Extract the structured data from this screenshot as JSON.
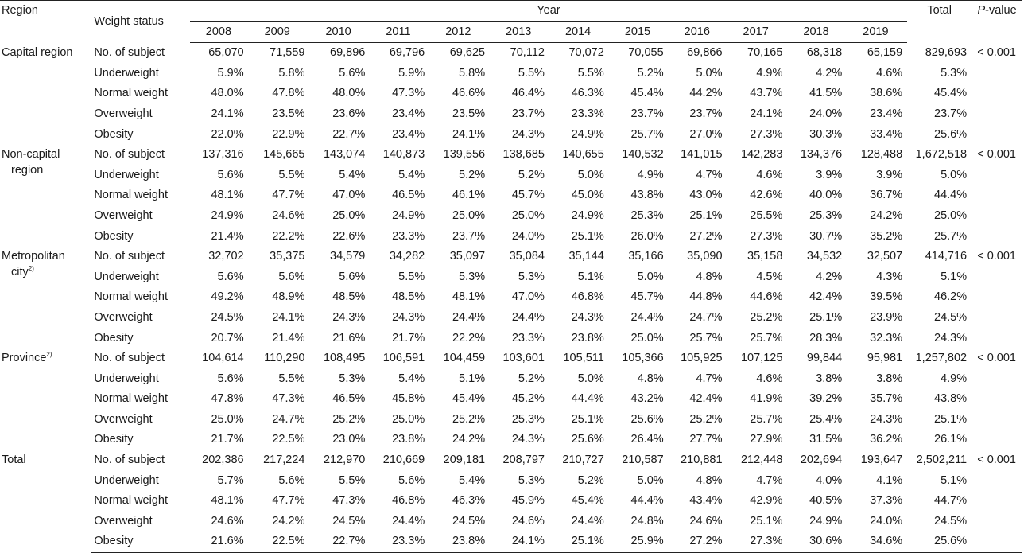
{
  "header": {
    "region": "Region",
    "weight_status": "Weight status",
    "year_group": "Year",
    "years": [
      "2008",
      "2009",
      "2010",
      "2011",
      "2012",
      "2013",
      "2014",
      "2015",
      "2016",
      "2017",
      "2018",
      "2019"
    ],
    "total": "Total",
    "pvalue_italic": "P",
    "pvalue_rest": "-value"
  },
  "regions": [
    {
      "name_line1": "Capital region",
      "name_line2": "",
      "superscript": "",
      "pvalue": "< 0.001",
      "rows": [
        {
          "status": "No. of subject",
          "values": [
            "65,070",
            "71,559",
            "69,896",
            "69,796",
            "69,625",
            "70,112",
            "70,072",
            "70,055",
            "69,866",
            "70,165",
            "68,318",
            "65,159"
          ],
          "total": "829,693"
        },
        {
          "status": "Underweight",
          "values": [
            "5.9%",
            "5.8%",
            "5.6%",
            "5.9%",
            "5.8%",
            "5.5%",
            "5.5%",
            "5.2%",
            "5.0%",
            "4.9%",
            "4.2%",
            "4.6%"
          ],
          "total": "5.3%"
        },
        {
          "status": "Normal weight",
          "values": [
            "48.0%",
            "47.8%",
            "48.0%",
            "47.3%",
            "46.6%",
            "46.4%",
            "46.3%",
            "45.4%",
            "44.2%",
            "43.7%",
            "41.5%",
            "38.6%"
          ],
          "total": "45.4%"
        },
        {
          "status": "Overweight",
          "values": [
            "24.1%",
            "23.5%",
            "23.6%",
            "23.4%",
            "23.5%",
            "23.7%",
            "23.3%",
            "23.7%",
            "23.7%",
            "24.1%",
            "24.0%",
            "23.4%"
          ],
          "total": "23.7%"
        },
        {
          "status": "Obesity",
          "values": [
            "22.0%",
            "22.9%",
            "22.7%",
            "23.4%",
            "24.1%",
            "24.3%",
            "24.9%",
            "25.7%",
            "27.0%",
            "27.3%",
            "30.3%",
            "33.4%"
          ],
          "total": "25.6%"
        }
      ]
    },
    {
      "name_line1": "Non-capital",
      "name_line2": "region",
      "superscript": "",
      "pvalue": "< 0.001",
      "rows": [
        {
          "status": "No. of subject",
          "values": [
            "137,316",
            "145,665",
            "143,074",
            "140,873",
            "139,556",
            "138,685",
            "140,655",
            "140,532",
            "141,015",
            "142,283",
            "134,376",
            "128,488"
          ],
          "total": "1,672,518"
        },
        {
          "status": "Underweight",
          "values": [
            "5.6%",
            "5.5%",
            "5.4%",
            "5.4%",
            "5.2%",
            "5.2%",
            "5.0%",
            "4.9%",
            "4.7%",
            "4.6%",
            "3.9%",
            "3.9%"
          ],
          "total": "5.0%"
        },
        {
          "status": "Normal weight",
          "values": [
            "48.1%",
            "47.7%",
            "47.0%",
            "46.5%",
            "46.1%",
            "45.7%",
            "45.0%",
            "43.8%",
            "43.0%",
            "42.6%",
            "40.0%",
            "36.7%"
          ],
          "total": "44.4%"
        },
        {
          "status": "Overweight",
          "values": [
            "24.9%",
            "24.6%",
            "25.0%",
            "24.9%",
            "25.0%",
            "25.0%",
            "24.9%",
            "25.3%",
            "25.1%",
            "25.5%",
            "25.3%",
            "24.2%"
          ],
          "total": "25.0%"
        },
        {
          "status": "Obesity",
          "values": [
            "21.4%",
            "22.2%",
            "22.6%",
            "23.3%",
            "23.7%",
            "24.0%",
            "25.1%",
            "26.0%",
            "27.2%",
            "27.3%",
            "30.7%",
            "35.2%"
          ],
          "total": "25.7%"
        }
      ]
    },
    {
      "name_line1": "Metropolitan",
      "name_line2": "city",
      "superscript": "2)",
      "pvalue": "< 0.001",
      "rows": [
        {
          "status": "No. of subject",
          "values": [
            "32,702",
            "35,375",
            "34,579",
            "34,282",
            "35,097",
            "35,084",
            "35,144",
            "35,166",
            "35,090",
            "35,158",
            "34,532",
            "32,507"
          ],
          "total": "414,716"
        },
        {
          "status": "Underweight",
          "values": [
            "5.6%",
            "5.6%",
            "5.6%",
            "5.5%",
            "5.3%",
            "5.3%",
            "5.1%",
            "5.0%",
            "4.8%",
            "4.5%",
            "4.2%",
            "4.3%"
          ],
          "total": "5.1%"
        },
        {
          "status": "Normal weight",
          "values": [
            "49.2%",
            "48.9%",
            "48.5%",
            "48.5%",
            "48.1%",
            "47.0%",
            "46.8%",
            "45.7%",
            "44.8%",
            "44.6%",
            "42.4%",
            "39.5%"
          ],
          "total": "46.2%"
        },
        {
          "status": "Overweight",
          "values": [
            "24.5%",
            "24.1%",
            "24.3%",
            "24.3%",
            "24.4%",
            "24.4%",
            "24.3%",
            "24.4%",
            "24.7%",
            "25.2%",
            "25.1%",
            "23.9%"
          ],
          "total": "24.5%"
        },
        {
          "status": "Obesity",
          "values": [
            "20.7%",
            "21.4%",
            "21.6%",
            "21.7%",
            "22.2%",
            "23.3%",
            "23.8%",
            "25.0%",
            "25.7%",
            "25.7%",
            "28.3%",
            "32.3%"
          ],
          "total": "24.3%"
        }
      ]
    },
    {
      "name_line1": "Province",
      "name_line2": "",
      "superscript": "2)",
      "pvalue": "< 0.001",
      "rows": [
        {
          "status": "No. of subject",
          "values": [
            "104,614",
            "110,290",
            "108,495",
            "106,591",
            "104,459",
            "103,601",
            "105,511",
            "105,366",
            "105,925",
            "107,125",
            "99,844",
            "95,981"
          ],
          "total": "1,257,802"
        },
        {
          "status": "Underweight",
          "values": [
            "5.6%",
            "5.5%",
            "5.3%",
            "5.4%",
            "5.1%",
            "5.2%",
            "5.0%",
            "4.8%",
            "4.7%",
            "4.6%",
            "3.8%",
            "3.8%"
          ],
          "total": "4.9%"
        },
        {
          "status": "Normal weight",
          "values": [
            "47.8%",
            "47.3%",
            "46.5%",
            "45.8%",
            "45.4%",
            "45.2%",
            "44.4%",
            "43.2%",
            "42.4%",
            "41.9%",
            "39.2%",
            "35.7%"
          ],
          "total": "43.8%"
        },
        {
          "status": "Overweight",
          "values": [
            "25.0%",
            "24.7%",
            "25.2%",
            "25.0%",
            "25.2%",
            "25.3%",
            "25.1%",
            "25.6%",
            "25.2%",
            "25.7%",
            "25.4%",
            "24.3%"
          ],
          "total": "25.1%"
        },
        {
          "status": "Obesity",
          "values": [
            "21.7%",
            "22.5%",
            "23.0%",
            "23.8%",
            "24.2%",
            "24.3%",
            "25.6%",
            "26.4%",
            "27.7%",
            "27.9%",
            "31.5%",
            "36.2%"
          ],
          "total": "26.1%"
        }
      ]
    },
    {
      "name_line1": "Total",
      "name_line2": "",
      "superscript": "",
      "pvalue": "< 0.001",
      "rows": [
        {
          "status": "No. of subject",
          "values": [
            "202,386",
            "217,224",
            "212,970",
            "210,669",
            "209,181",
            "208,797",
            "210,727",
            "210,587",
            "210,881",
            "212,448",
            "202,694",
            "193,647"
          ],
          "total": "2,502,211"
        },
        {
          "status": "Underweight",
          "values": [
            "5.7%",
            "5.6%",
            "5.5%",
            "5.6%",
            "5.4%",
            "5.3%",
            "5.2%",
            "5.0%",
            "4.8%",
            "4.7%",
            "4.0%",
            "4.1%"
          ],
          "total": "5.1%"
        },
        {
          "status": "Normal weight",
          "values": [
            "48.1%",
            "47.7%",
            "47.3%",
            "46.8%",
            "46.3%",
            "45.9%",
            "45.4%",
            "44.4%",
            "43.4%",
            "42.9%",
            "40.5%",
            "37.3%"
          ],
          "total": "44.7%"
        },
        {
          "status": "Overweight",
          "values": [
            "24.6%",
            "24.2%",
            "24.5%",
            "24.4%",
            "24.5%",
            "24.6%",
            "24.4%",
            "24.8%",
            "24.6%",
            "25.1%",
            "24.9%",
            "24.0%"
          ],
          "total": "24.5%"
        },
        {
          "status": "Obesity",
          "values": [
            "21.6%",
            "22.5%",
            "22.7%",
            "23.3%",
            "23.8%",
            "24.1%",
            "25.1%",
            "25.9%",
            "27.2%",
            "27.3%",
            "30.6%",
            "34.6%"
          ],
          "total": "25.6%"
        }
      ]
    }
  ]
}
